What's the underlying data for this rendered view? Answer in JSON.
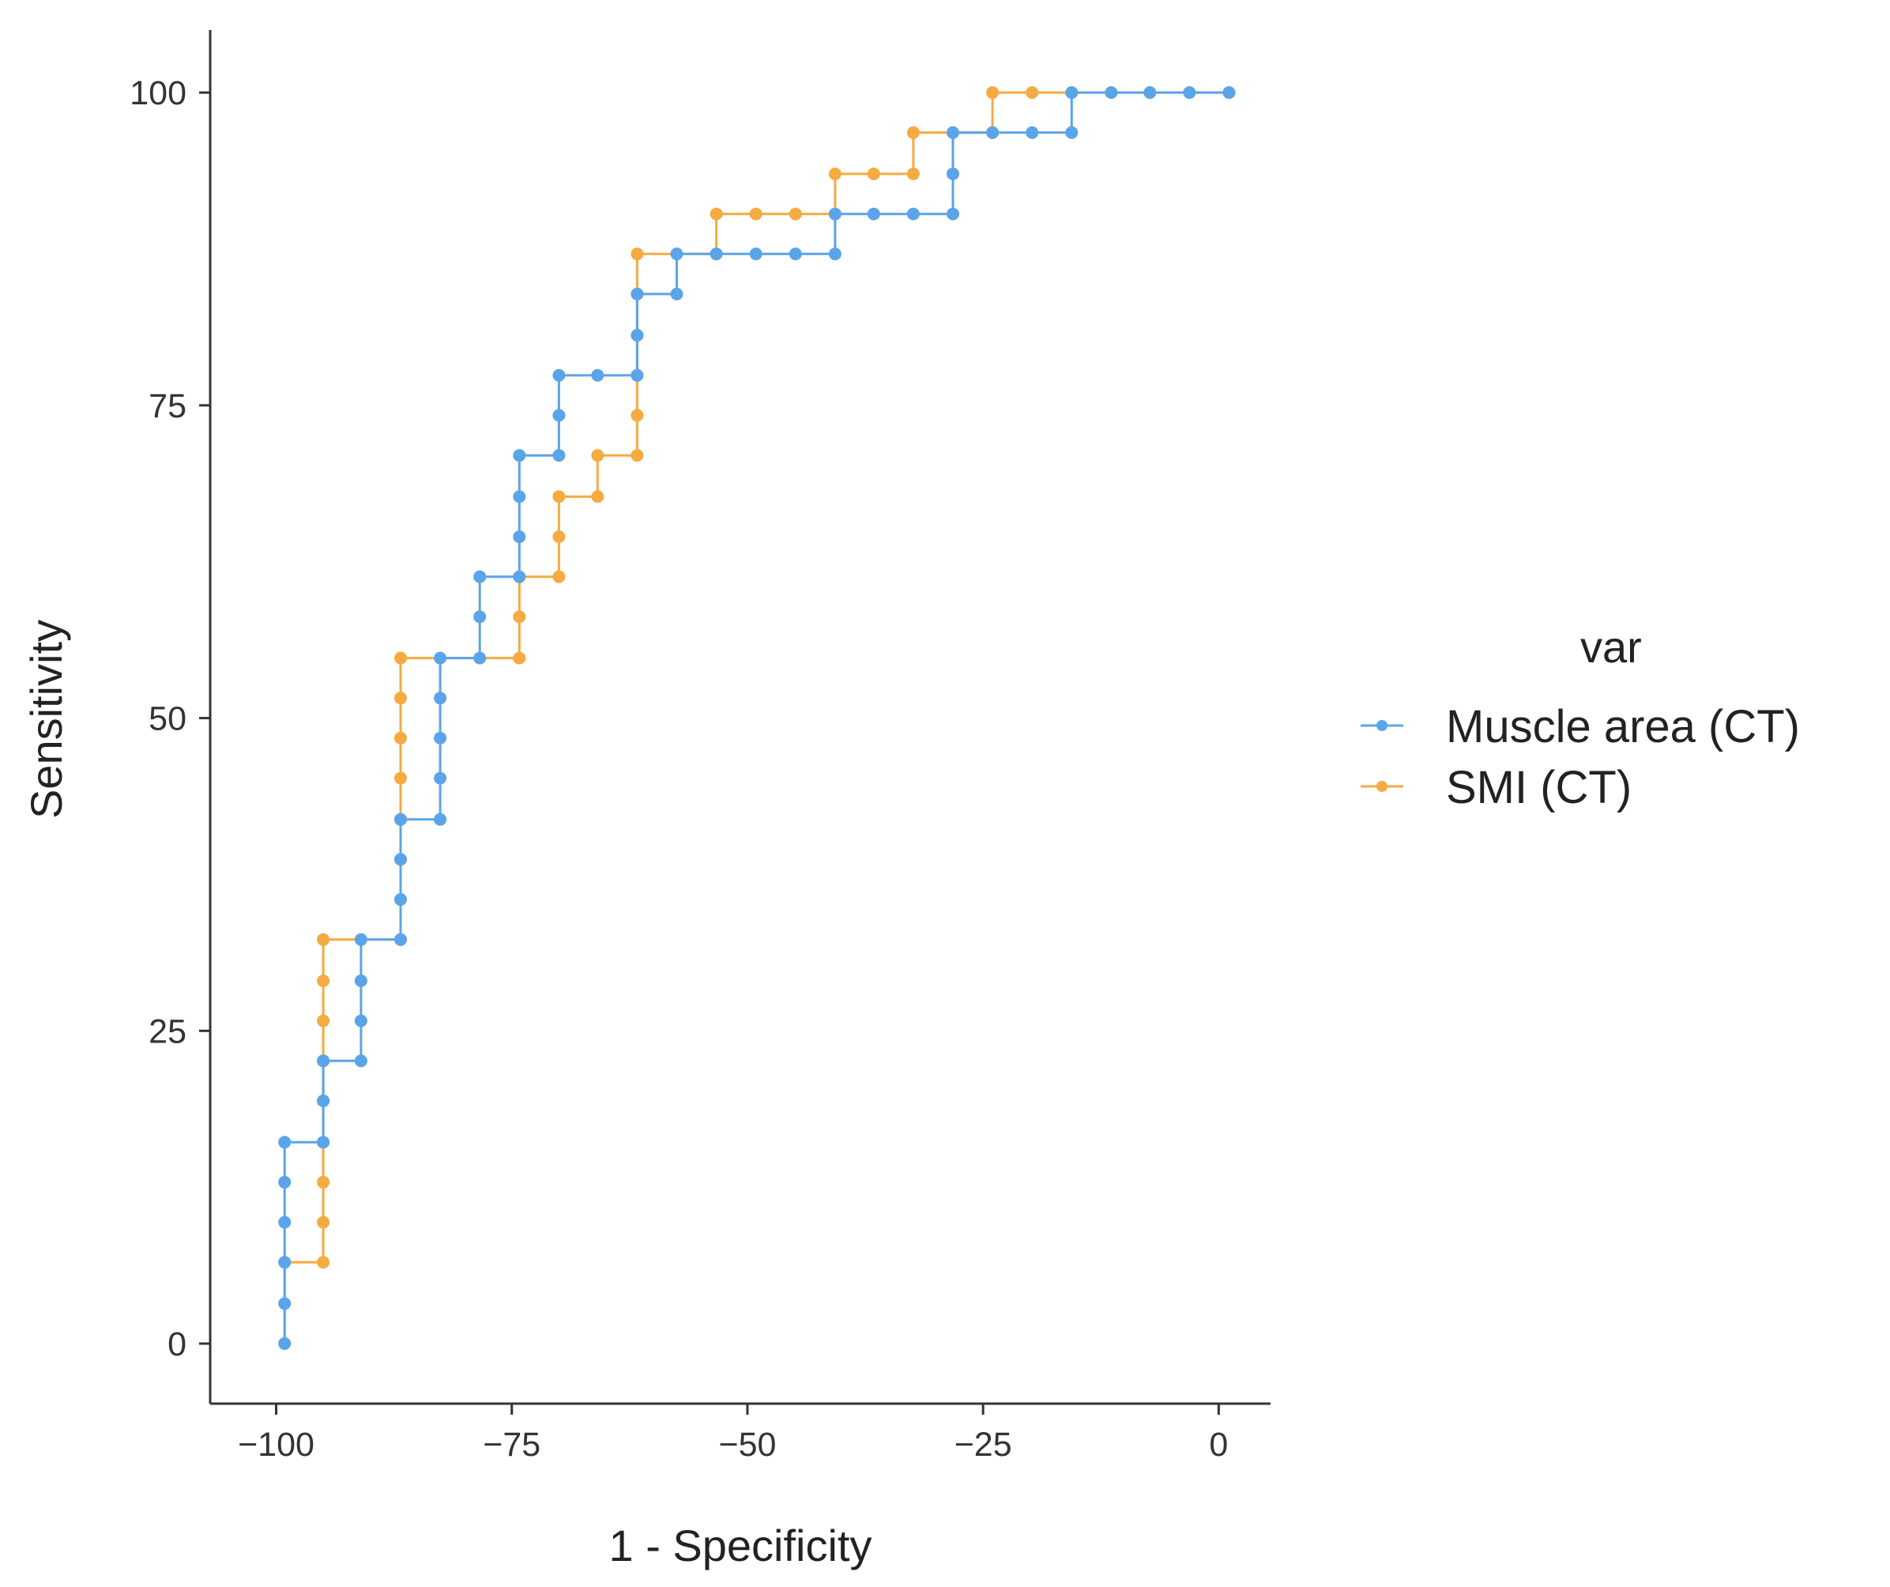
{
  "chart_data": {
    "type": "line",
    "title": "",
    "xlabel": "1 - Specificity",
    "ylabel": "Sensitivity",
    "xlim": [
      -107,
      5.5
    ],
    "ylim": [
      -4.8,
      105
    ],
    "xticks": [
      -100,
      -75,
      -50,
      -25,
      0
    ],
    "yticks": [
      0,
      25,
      50,
      75,
      100
    ],
    "xtick_labels": [
      "−100",
      "−75",
      "−50",
      "−25",
      "0"
    ],
    "ytick_labels": [
      "0",
      "25",
      "50",
      "75",
      "100"
    ],
    "grid": false,
    "legend": {
      "title": "var",
      "position": "right"
    },
    "series": [
      {
        "name": "Muscle area (CT)",
        "color": "#5aa4ea",
        "points": [
          [
            -99.1,
            0
          ],
          [
            -99.1,
            3.2
          ],
          [
            -99.1,
            6.5
          ],
          [
            -99.1,
            9.7
          ],
          [
            -99.1,
            12.9
          ],
          [
            -99.1,
            16.1
          ],
          [
            -95.0,
            16.1
          ],
          [
            -95.0,
            19.4
          ],
          [
            -95.0,
            22.6
          ],
          [
            -91.0,
            22.6
          ],
          [
            -91.0,
            25.8
          ],
          [
            -91.0,
            29.0
          ],
          [
            -91.0,
            32.3
          ],
          [
            -86.8,
            32.3
          ],
          [
            -86.8,
            35.5
          ],
          [
            -86.8,
            38.7
          ],
          [
            -86.8,
            41.9
          ],
          [
            -82.6,
            41.9
          ],
          [
            -82.6,
            45.2
          ],
          [
            -82.6,
            48.4
          ],
          [
            -82.6,
            51.6
          ],
          [
            -82.6,
            54.8
          ],
          [
            -78.4,
            54.8
          ],
          [
            -78.4,
            58.1
          ],
          [
            -78.4,
            61.3
          ],
          [
            -74.2,
            61.3
          ],
          [
            -74.2,
            64.5
          ],
          [
            -74.2,
            67.7
          ],
          [
            -74.2,
            71.0
          ],
          [
            -70.0,
            71.0
          ],
          [
            -70.0,
            74.2
          ],
          [
            -70.0,
            77.4
          ],
          [
            -65.9,
            77.4
          ],
          [
            -61.7,
            77.4
          ],
          [
            -61.7,
            80.6
          ],
          [
            -61.7,
            83.9
          ],
          [
            -57.5,
            83.9
          ],
          [
            -57.5,
            87.1
          ],
          [
            -53.3,
            87.1
          ],
          [
            -49.1,
            87.1
          ],
          [
            -44.9,
            87.1
          ],
          [
            -40.7,
            87.1
          ],
          [
            -40.7,
            90.3
          ],
          [
            -36.6,
            90.3
          ],
          [
            -32.4,
            90.3
          ],
          [
            -28.2,
            90.3
          ],
          [
            -28.2,
            93.5
          ],
          [
            -28.2,
            96.8
          ],
          [
            -24.0,
            96.8
          ],
          [
            -19.8,
            96.8
          ],
          [
            -15.6,
            96.8
          ],
          [
            -15.6,
            100
          ],
          [
            -11.4,
            100
          ],
          [
            -7.3,
            100
          ],
          [
            -3.1,
            100
          ],
          [
            1.1,
            100
          ]
        ]
      },
      {
        "name": "SMI (CT)",
        "color": "#f5aa42",
        "points": [
          [
            -99.1,
            0
          ],
          [
            -99.1,
            6.5
          ],
          [
            -95.0,
            6.5
          ],
          [
            -95.0,
            9.7
          ],
          [
            -95.0,
            12.9
          ],
          [
            -95.0,
            16.1
          ],
          [
            -95.0,
            19.4
          ],
          [
            -95.0,
            22.6
          ],
          [
            -95.0,
            25.8
          ],
          [
            -95.0,
            29.0
          ],
          [
            -95.0,
            32.3
          ],
          [
            -86.8,
            32.3
          ],
          [
            -86.8,
            35.5
          ],
          [
            -86.8,
            38.7
          ],
          [
            -86.8,
            41.9
          ],
          [
            -86.8,
            45.2
          ],
          [
            -86.8,
            48.4
          ],
          [
            -86.8,
            51.6
          ],
          [
            -86.8,
            54.8
          ],
          [
            -74.2,
            54.8
          ],
          [
            -74.2,
            58.1
          ],
          [
            -74.2,
            61.3
          ],
          [
            -70.0,
            61.3
          ],
          [
            -70.0,
            64.5
          ],
          [
            -70.0,
            67.7
          ],
          [
            -65.9,
            67.7
          ],
          [
            -65.9,
            71.0
          ],
          [
            -61.7,
            71.0
          ],
          [
            -61.7,
            74.2
          ],
          [
            -61.7,
            77.4
          ],
          [
            -61.7,
            80.6
          ],
          [
            -61.7,
            83.9
          ],
          [
            -61.7,
            87.1
          ],
          [
            -53.3,
            87.1
          ],
          [
            -53.3,
            90.3
          ],
          [
            -49.1,
            90.3
          ],
          [
            -44.9,
            90.3
          ],
          [
            -40.7,
            90.3
          ],
          [
            -40.7,
            93.5
          ],
          [
            -36.6,
            93.5
          ],
          [
            -32.4,
            93.5
          ],
          [
            -32.4,
            96.8
          ],
          [
            -28.2,
            96.8
          ],
          [
            -24.0,
            96.8
          ],
          [
            -24.0,
            100
          ],
          [
            -19.8,
            100
          ],
          [
            -15.6,
            100
          ],
          [
            -11.4,
            100
          ],
          [
            -7.3,
            100
          ],
          [
            -3.1,
            100
          ],
          [
            1.1,
            100
          ]
        ]
      }
    ]
  }
}
